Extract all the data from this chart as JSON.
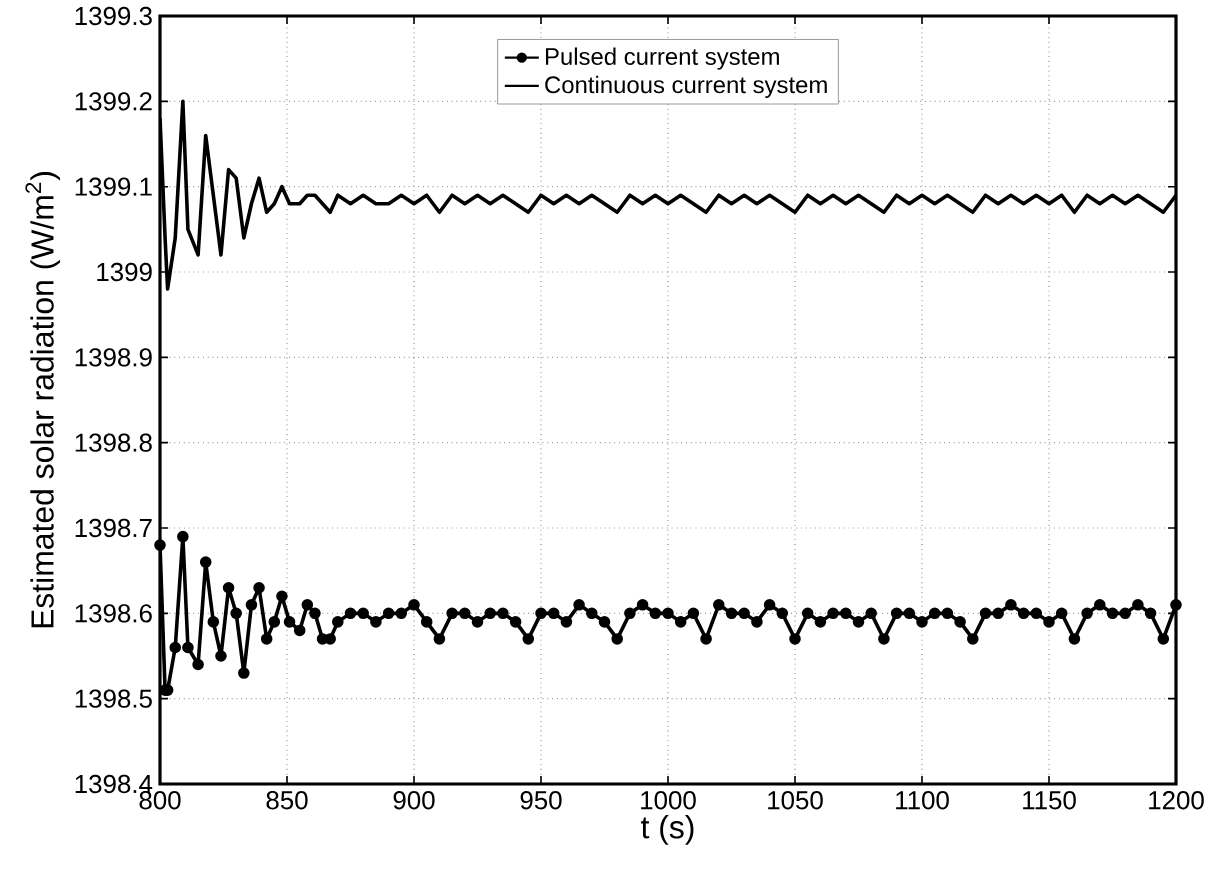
{
  "chart_data": {
    "type": "line",
    "xlabel": "t (s)",
    "ylabel": "Estimated solar radiation (W/m$^{2}$)",
    "xlim": [
      800,
      1200
    ],
    "xticks": [
      800,
      850,
      900,
      950,
      1000,
      1050,
      1100,
      1150,
      1200
    ],
    "ylim": [
      1398.4,
      1399.3
    ],
    "yticks": [
      1398.4,
      1398.5,
      1398.6,
      1398.7,
      1398.8,
      1398.9,
      1399,
      1399.1,
      1399.2,
      1399.3
    ],
    "grid": true,
    "legend": "top",
    "x": [
      800,
      802,
      803,
      806,
      809,
      811,
      815,
      818,
      821,
      824,
      827,
      830,
      833,
      836,
      839,
      842,
      845,
      848,
      851,
      855,
      858,
      861,
      864,
      867,
      870,
      875,
      880,
      885,
      890,
      895,
      900,
      905,
      910,
      915,
      920,
      925,
      930,
      935,
      940,
      945,
      950,
      955,
      960,
      965,
      970,
      975,
      980,
      985,
      990,
      995,
      1000,
      1005,
      1010,
      1015,
      1020,
      1025,
      1030,
      1035,
      1040,
      1045,
      1050,
      1055,
      1060,
      1065,
      1070,
      1075,
      1080,
      1085,
      1090,
      1095,
      1100,
      1105,
      1110,
      1115,
      1120,
      1125,
      1130,
      1135,
      1140,
      1145,
      1150,
      1155,
      1160,
      1165,
      1170,
      1175,
      1180,
      1185,
      1190,
      1195,
      1200
    ],
    "series": [
      {
        "name": "Pulsed current system",
        "color": "#000000",
        "marker": "circle",
        "line_style": "solid",
        "values": [
          1398.68,
          1398.51,
          1398.51,
          1398.56,
          1398.69,
          1398.56,
          1398.54,
          1398.66,
          1398.59,
          1398.55,
          1398.63,
          1398.6,
          1398.53,
          1398.61,
          1398.63,
          1398.57,
          1398.59,
          1398.62,
          1398.59,
          1398.58,
          1398.61,
          1398.6,
          1398.57,
          1398.57,
          1398.59,
          1398.6,
          1398.6,
          1398.59,
          1398.6,
          1398.6,
          1398.61,
          1398.59,
          1398.57,
          1398.6,
          1398.6,
          1398.59,
          1398.6,
          1398.6,
          1398.59,
          1398.57,
          1398.6,
          1398.6,
          1398.59,
          1398.61,
          1398.6,
          1398.59,
          1398.57,
          1398.6,
          1398.61,
          1398.6,
          1398.6,
          1398.59,
          1398.6,
          1398.57,
          1398.61,
          1398.6,
          1398.6,
          1398.59,
          1398.61,
          1398.6,
          1398.57,
          1398.6,
          1398.59,
          1398.6,
          1398.6,
          1398.59,
          1398.6,
          1398.57,
          1398.6,
          1398.6,
          1398.59,
          1398.6,
          1398.6,
          1398.59,
          1398.57,
          1398.6,
          1398.6,
          1398.61,
          1398.6,
          1398.6,
          1398.59,
          1398.6,
          1398.57,
          1398.6,
          1398.61,
          1398.6,
          1398.6,
          1398.61,
          1398.6,
          1398.57,
          1398.61
        ]
      },
      {
        "name": "Continuous current system",
        "color": "#000000",
        "marker": "none",
        "line_style": "solid",
        "values": [
          1399.18,
          1399.04,
          1398.98,
          1399.04,
          1399.2,
          1399.05,
          1399.02,
          1399.16,
          1399.09,
          1399.02,
          1399.12,
          1399.11,
          1399.04,
          1399.08,
          1399.11,
          1399.07,
          1399.08,
          1399.1,
          1399.08,
          1399.08,
          1399.09,
          1399.09,
          1399.08,
          1399.07,
          1399.09,
          1399.08,
          1399.09,
          1399.08,
          1399.08,
          1399.09,
          1399.08,
          1399.09,
          1399.07,
          1399.09,
          1399.08,
          1399.09,
          1399.08,
          1399.09,
          1399.08,
          1399.07,
          1399.09,
          1399.08,
          1399.09,
          1399.08,
          1399.09,
          1399.08,
          1399.07,
          1399.09,
          1399.08,
          1399.09,
          1399.08,
          1399.09,
          1399.08,
          1399.07,
          1399.09,
          1399.08,
          1399.09,
          1399.08,
          1399.09,
          1399.08,
          1399.07,
          1399.09,
          1399.08,
          1399.09,
          1399.08,
          1399.09,
          1399.08,
          1399.07,
          1399.09,
          1399.08,
          1399.09,
          1399.08,
          1399.09,
          1399.08,
          1399.07,
          1399.09,
          1399.08,
          1399.09,
          1399.08,
          1399.09,
          1399.08,
          1399.09,
          1399.07,
          1399.09,
          1399.08,
          1399.09,
          1399.08,
          1399.09,
          1399.08,
          1399.07,
          1399.09
        ]
      }
    ]
  }
}
